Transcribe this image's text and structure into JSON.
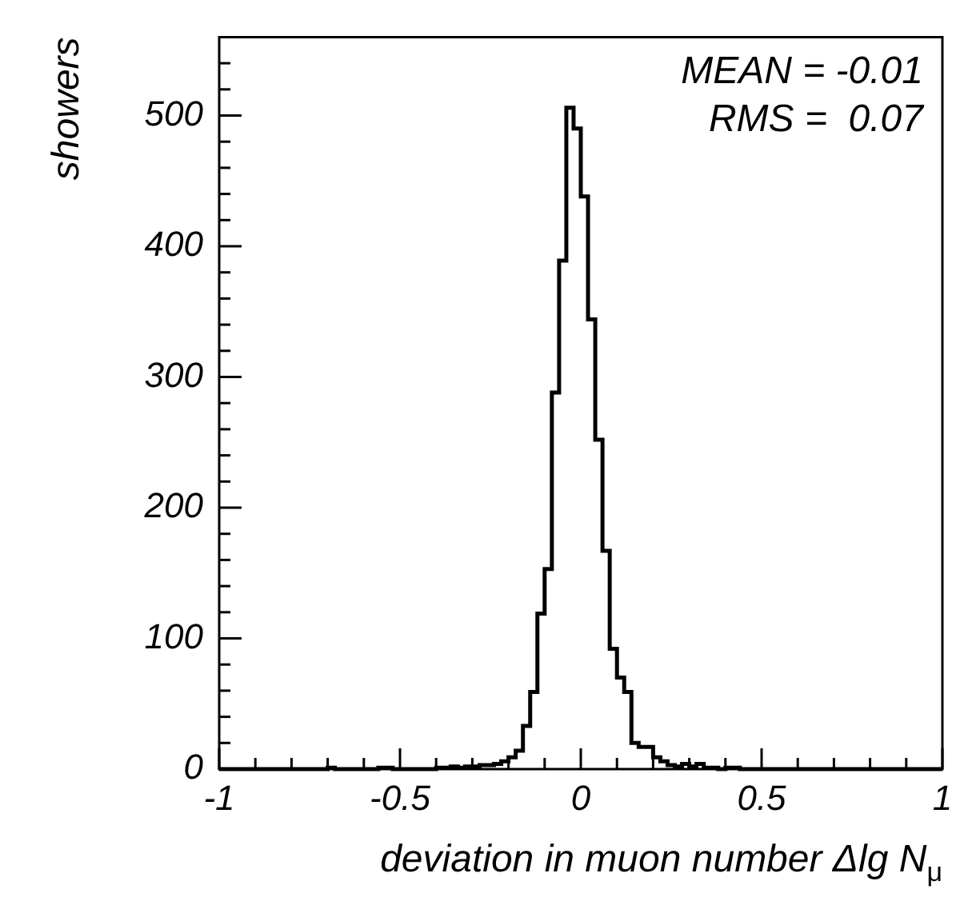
{
  "chart_data": {
    "type": "histogram",
    "xlabel": "deviation in muon number  Δlg N$_{μ}$",
    "ylabel": "showers",
    "annotations": [
      "MEAN = -0.01",
      "RMS =  0.07"
    ],
    "color": "#000000",
    "bins": [
      -1,
      -0.98,
      -0.96,
      -0.94,
      -0.92,
      -0.9,
      -0.88,
      -0.86,
      -0.84,
      -0.82,
      -0.8,
      -0.78,
      -0.76,
      -0.74,
      -0.72,
      -0.7,
      -0.68,
      -0.66,
      -0.64,
      -0.62,
      -0.6,
      -0.58,
      -0.56,
      -0.54,
      -0.52,
      -0.5,
      -0.48,
      -0.46,
      -0.44,
      -0.42,
      -0.4,
      -0.38,
      -0.36,
      -0.34,
      -0.32,
      -0.3,
      -0.28,
      -0.26,
      -0.24,
      -0.22,
      -0.2,
      -0.18,
      -0.16,
      -0.14,
      -0.12,
      -0.1,
      -0.08,
      -0.06,
      -0.04,
      -0.02,
      0,
      0.02,
      0.04,
      0.06,
      0.08,
      0.1,
      0.12,
      0.14,
      0.16,
      0.18,
      0.2,
      0.22,
      0.24,
      0.26,
      0.28,
      0.3,
      0.32,
      0.34,
      0.36,
      0.38,
      0.4,
      0.42,
      0.44,
      0.46,
      0.48,
      0.5,
      0.52,
      0.54,
      0.56,
      0.58,
      0.6,
      0.62,
      0.64,
      0.66,
      0.68,
      0.7,
      0.72,
      0.74,
      0.76,
      0.78,
      0.8,
      0.82,
      0.84,
      0.86,
      0.88,
      0.9,
      0.92,
      0.94,
      0.96,
      0.98,
      1
    ],
    "values": [
      0,
      0,
      0,
      0,
      0,
      0,
      0,
      0,
      0,
      0,
      0,
      0,
      0,
      0,
      0,
      1,
      0,
      0,
      0,
      0,
      0,
      0,
      1,
      1,
      0,
      0,
      0,
      0,
      0,
      0,
      1,
      1,
      2,
      1,
      2,
      2,
      3,
      3,
      4,
      6,
      9,
      14,
      33,
      59,
      119,
      153,
      288,
      389,
      506,
      490,
      438,
      344,
      252,
      167,
      92,
      70,
      59,
      20,
      17,
      17,
      9,
      6,
      3,
      2,
      4,
      2,
      4,
      1,
      1,
      0,
      1,
      1,
      0,
      0,
      0,
      0,
      0,
      0,
      0,
      0,
      0,
      0,
      0,
      0,
      0,
      0,
      0,
      0,
      0,
      0,
      0,
      0,
      0,
      0,
      0,
      0,
      0,
      0,
      0,
      0
    ],
    "xlim": [
      -1,
      1
    ],
    "xticks": [
      -1,
      {
        "value": -0.9,
        "label": null
      },
      {
        "value": -0.8,
        "label": null
      },
      {
        "value": -0.7,
        "label": null
      },
      {
        "value": -0.6,
        "label": null
      },
      -0.5,
      {
        "value": -0.4,
        "label": null
      },
      {
        "value": -0.3,
        "label": null
      },
      {
        "value": -0.2,
        "label": null
      },
      {
        "value": -0.1,
        "label": null
      },
      0,
      {
        "value": 0.1,
        "label": null
      },
      {
        "value": 0.2,
        "label": null
      },
      {
        "value": 0.3,
        "label": null
      },
      {
        "value": 0.4,
        "label": null
      },
      0.5,
      {
        "value": 0.6,
        "label": null
      },
      {
        "value": 0.7,
        "label": null
      },
      {
        "value": 0.8,
        "label": null
      },
      {
        "value": 0.9,
        "label": null
      },
      1
    ],
    "ylim": [
      0,
      560
    ],
    "yticks": [
      0,
      {
        "value": 20,
        "label": null
      },
      {
        "value": 40,
        "label": null
      },
      {
        "value": 60,
        "label": null
      },
      {
        "value": 80,
        "label": null
      },
      100,
      {
        "value": 120,
        "label": null
      },
      {
        "value": 140,
        "label": null
      },
      {
        "value": 160,
        "label": null
      },
      {
        "value": 180,
        "label": null
      },
      200,
      {
        "value": 220,
        "label": null
      },
      {
        "value": 240,
        "label": null
      },
      {
        "value": 260,
        "label": null
      },
      {
        "value": 280,
        "label": null
      },
      300,
      {
        "value": 320,
        "label": null
      },
      {
        "value": 340,
        "label": null
      },
      {
        "value": 360,
        "label": null
      },
      {
        "value": 380,
        "label": null
      },
      400,
      {
        "value": 420,
        "label": null
      },
      {
        "value": 440,
        "label": null
      },
      {
        "value": 460,
        "label": null
      },
      {
        "value": 480,
        "label": null
      },
      500,
      {
        "value": 520,
        "label": null
      },
      {
        "value": 540,
        "label": null
      }
    ]
  }
}
